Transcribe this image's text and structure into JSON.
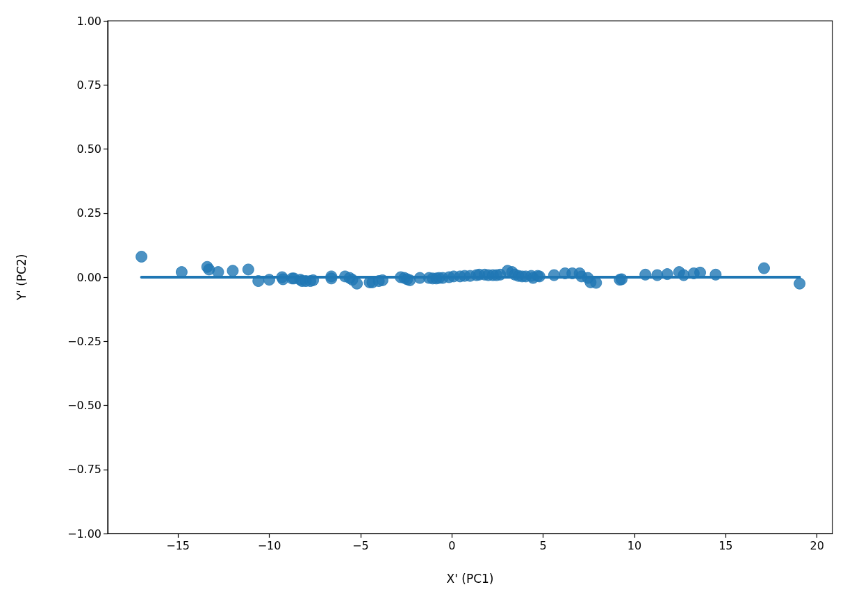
{
  "chart_data": {
    "type": "scatter",
    "xlabel": "X' (PC1)",
    "ylabel": "Y' (PC2)",
    "xlim": [
      -18.85,
      20.85
    ],
    "xticks": [
      {
        "value": -15,
        "label": "−15"
      },
      {
        "value": -10,
        "label": "−10"
      },
      {
        "value": -5,
        "label": "−5"
      },
      0,
      5,
      10,
      15,
      20
    ],
    "ylim": [
      -1,
      1
    ],
    "yticks": [
      {
        "value": -1,
        "label": "−1.00"
      },
      {
        "value": -0.75,
        "label": "−0.75"
      },
      {
        "value": -0.5,
        "label": "−0.50"
      },
      {
        "value": -0.25,
        "label": "−0.25"
      },
      {
        "value": 0,
        "label": "0.00"
      },
      {
        "value": 0.25,
        "label": "0.25"
      },
      {
        "value": 0.5,
        "label": "0.50"
      },
      {
        "value": 0.75,
        "label": "0.75"
      },
      {
        "value": 1,
        "label": "1.00"
      }
    ],
    "grid": false,
    "marker": "circle",
    "series": [
      {
        "color": "#1f77b4",
        "x": [
          -17.0,
          -14.8,
          -13.4,
          -13.3,
          -12.8,
          -12.0,
          -11.15,
          -10.6,
          -10.0,
          -9.3,
          -9.25,
          -8.75,
          -8.65,
          -8.3,
          -8.2,
          -8.0,
          -7.75,
          -7.6,
          -6.6,
          -6.6,
          -5.85,
          -5.6,
          -5.45,
          -5.2,
          -4.5,
          -4.35,
          -4.0,
          -3.8,
          -2.8,
          -2.6,
          -2.45,
          -2.3,
          -1.75,
          -1.25,
          -1.05,
          -0.85,
          -0.7,
          -0.5,
          -0.15,
          0.1,
          0.45,
          0.7,
          1.0,
          1.35,
          1.5,
          1.8,
          2.0,
          2.25,
          2.45,
          2.65,
          3.05,
          3.3,
          3.45,
          3.65,
          3.85,
          4.05,
          4.35,
          4.45,
          4.7,
          4.8,
          5.6,
          6.2,
          6.6,
          7.0,
          7.1,
          7.45,
          7.6,
          7.9,
          9.2,
          9.3,
          10.6,
          11.25,
          11.8,
          12.45,
          12.7,
          13.25,
          13.6,
          14.45,
          17.1,
          19.05
        ],
        "values": [
          0.08,
          0.02,
          0.04,
          0.03,
          0.02,
          0.025,
          0.03,
          -0.015,
          -0.01,
          0.0,
          -0.008,
          -0.005,
          -0.005,
          -0.01,
          -0.015,
          -0.015,
          -0.015,
          -0.012,
          0.003,
          -0.005,
          0.003,
          -0.003,
          -0.01,
          -0.025,
          -0.02,
          -0.02,
          -0.015,
          -0.012,
          0.0,
          -0.003,
          -0.008,
          -0.012,
          -0.003,
          -0.003,
          -0.005,
          -0.005,
          -0.003,
          -0.003,
          0.0,
          0.003,
          0.003,
          0.005,
          0.005,
          0.008,
          0.01,
          0.01,
          0.008,
          0.008,
          0.008,
          0.01,
          0.025,
          0.02,
          0.01,
          0.005,
          0.003,
          0.003,
          0.005,
          -0.003,
          0.005,
          0.003,
          0.008,
          0.015,
          0.015,
          0.015,
          0.003,
          -0.003,
          -0.02,
          -0.022,
          -0.01,
          -0.008,
          0.01,
          0.008,
          0.012,
          0.02,
          0.008,
          0.015,
          0.018,
          0.01,
          0.035,
          -0.025
        ]
      },
      {
        "type": "line",
        "color": "#1f77b4",
        "marker": "none",
        "line_style": "solid",
        "x": [
          -17.0,
          19.05
        ],
        "values": [
          0.0,
          0.0
        ]
      }
    ]
  }
}
